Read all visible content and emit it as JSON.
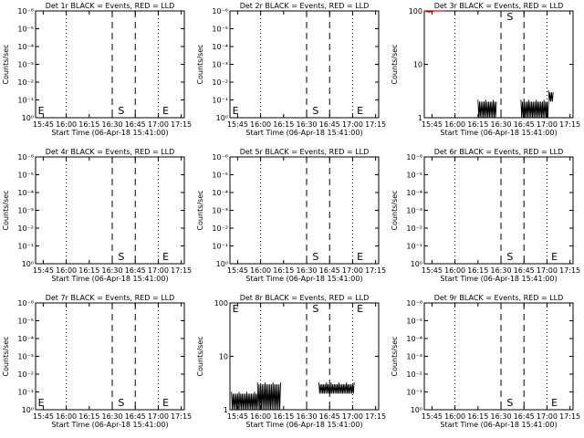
{
  "chart_data": [
    {
      "type": "line",
      "title": "Det 1r BLACK = Events, RED = LLD",
      "xlabel": "Start Time (06-Apr-18 15:41:00)",
      "ylabel": "Counts/sec",
      "yscale": "log",
      "ylim_exp": [
        0,
        -6
      ],
      "yticks": [
        "10⁰",
        "10⁻¹",
        "10⁻²",
        "10⁻³",
        "10⁻⁴",
        "10⁻⁵",
        "10⁻⁶"
      ],
      "xticks": [
        "15:45",
        "16:00",
        "16:15",
        "16:30",
        "16:45",
        "17:00",
        "17:15"
      ],
      "x_range_min": [
        -1,
        96
      ],
      "dotted_lines_min": [
        19,
        79
      ],
      "dashed_lines_min": [
        49,
        64
      ],
      "markers": [
        {
          "label": "E",
          "x_min": 0
        },
        {
          "label": "S",
          "x_min": 51
        },
        {
          "label": "E",
          "x_min": 80
        }
      ],
      "series": []
    },
    {
      "type": "line",
      "title": "Det 2r BLACK = Events, RED = LLD",
      "xlabel": "Start Time (06-Apr-18 15:41:00)",
      "ylabel": "Counts/sec",
      "yscale": "log",
      "ylim_exp": [
        0,
        -6
      ],
      "yticks": [
        "10⁰",
        "10⁻¹",
        "10⁻²",
        "10⁻³",
        "10⁻⁴",
        "10⁻⁵",
        "10⁻⁶"
      ],
      "xticks": [
        "15:45",
        "16:00",
        "16:15",
        "16:30",
        "16:45",
        "17:00",
        "17:15"
      ],
      "x_range_min": [
        -1,
        96
      ],
      "dotted_lines_min": [
        19,
        79
      ],
      "dashed_lines_min": [
        49,
        64
      ],
      "markers": [
        {
          "label": "E",
          "x_min": 0
        },
        {
          "label": "S",
          "x_min": 51
        },
        {
          "label": "E",
          "x_min": 80
        }
      ],
      "series": []
    },
    {
      "type": "line",
      "title": "Det 3r BLACK = Events, RED = LLD",
      "xlabel": "Start Time (06-Apr-18 15:41:00)",
      "ylabel": "Counts/sec",
      "yscale": "log",
      "ylim": [
        1,
        100
      ],
      "yticks": [
        "100",
        "10",
        "1"
      ],
      "xticks": [
        "15:45",
        "16:00",
        "16:15",
        "16:30",
        "16:45",
        "17:00",
        "17:15"
      ],
      "x_range_min": [
        -1,
        96
      ],
      "dotted_lines_min": [
        19,
        79
      ],
      "dashed_lines_min": [
        49,
        64
      ],
      "markers": [
        {
          "label": "S",
          "x_min": 51
        }
      ],
      "series": [
        {
          "color": "#000000",
          "kind": "spiky",
          "segments": [
            {
              "x_min": [
                34,
                46
              ],
              "low": 1,
              "high": 2
            },
            {
              "x_min": [
                62,
                80
              ],
              "low": 1,
              "high": 2
            },
            {
              "x_min": [
                80,
                83
              ],
              "low": 2,
              "high": 3
            }
          ]
        },
        {
          "color": "#ff0000",
          "kind": "line",
          "points": [
            [
              -1,
              100
            ],
            [
              2,
              95
            ],
            [
              6,
              100
            ],
            [
              12,
              100
            ]
          ]
        }
      ]
    },
    {
      "type": "line",
      "title": "Det 4r BLACK = Events, RED = LLD",
      "xlabel": "Start Time (06-Apr-18 15:41:00)",
      "ylabel": "Counts/sec",
      "yscale": "log",
      "ylim_exp": [
        0,
        -6
      ],
      "yticks": [
        "10⁰",
        "10⁻¹",
        "10⁻²",
        "10⁻³",
        "10⁻⁴",
        "10⁻⁵",
        "10⁻⁶"
      ],
      "xticks": [
        "15:45",
        "16:00",
        "16:15",
        "16:30",
        "16:45",
        "17:00",
        "17:15"
      ],
      "x_range_min": [
        -1,
        96
      ],
      "dotted_lines_min": [
        19,
        79
      ],
      "dashed_lines_min": [
        49,
        64
      ],
      "markers": [
        {
          "label": "S",
          "x_min": 51
        },
        {
          "label": "E",
          "x_min": 80
        }
      ],
      "series": []
    },
    {
      "type": "line",
      "title": "Det 5r BLACK = Events, RED = LLD",
      "xlabel": "Start Time (06-Apr-18 15:41:00)",
      "ylabel": "Counts/sec",
      "yscale": "log",
      "ylim_exp": [
        0,
        -6
      ],
      "yticks": [
        "10⁰",
        "10⁻¹",
        "10⁻²",
        "10⁻³",
        "10⁻⁴",
        "10⁻⁵",
        "10⁻⁶"
      ],
      "xticks": [
        "15:45",
        "16:00",
        "16:15",
        "16:30",
        "16:45",
        "17:00",
        "17:15"
      ],
      "x_range_min": [
        -1,
        96
      ],
      "dotted_lines_min": [
        19,
        79
      ],
      "dashed_lines_min": [
        49,
        64
      ],
      "markers": [
        {
          "label": "S",
          "x_min": 51
        },
        {
          "label": "E",
          "x_min": 80
        }
      ],
      "series": []
    },
    {
      "type": "line",
      "title": "Det 6r BLACK = Events, RED = LLD",
      "xlabel": "Start Time (06-Apr-18 15:41:00)",
      "ylabel": "Counts/sec",
      "yscale": "log",
      "ylim_exp": [
        0,
        -6
      ],
      "yticks": [
        "10⁰",
        "10⁻¹",
        "10⁻²",
        "10⁻³",
        "10⁻⁴",
        "10⁻⁵",
        "10⁻⁶"
      ],
      "xticks": [
        "15:45",
        "16:00",
        "16:15",
        "16:30",
        "16:45",
        "17:00",
        "17:15"
      ],
      "x_range_min": [
        -1,
        96
      ],
      "dotted_lines_min": [
        19,
        79
      ],
      "dashed_lines_min": [
        49,
        64
      ],
      "markers": [
        {
          "label": "S",
          "x_min": 51
        },
        {
          "label": "E",
          "x_min": 80
        }
      ],
      "series": []
    },
    {
      "type": "line",
      "title": "Det 7r BLACK = Events, RED = LLD",
      "xlabel": "Start Time (06-Apr-18 15:41:00)",
      "ylabel": "Counts/sec",
      "yscale": "log",
      "ylim_exp": [
        0,
        -6
      ],
      "yticks": [
        "10⁰",
        "10⁻¹",
        "10⁻²",
        "10⁻³",
        "10⁻⁴",
        "10⁻⁵",
        "10⁻⁶"
      ],
      "xticks": [
        "15:45",
        "16:00",
        "16:15",
        "16:30",
        "16:45",
        "17:00",
        "17:15"
      ],
      "x_range_min": [
        -1,
        96
      ],
      "dotted_lines_min": [
        19,
        79
      ],
      "dashed_lines_min": [
        49,
        64
      ],
      "markers": [
        {
          "label": "E",
          "x_min": 0
        },
        {
          "label": "S",
          "x_min": 51
        },
        {
          "label": "E",
          "x_min": 80
        }
      ],
      "series": []
    },
    {
      "type": "line",
      "title": "Det 8r BLACK = Events, RED = LLD",
      "xlabel": "Start Time (06-Apr-18 15:41:00)",
      "ylabel": "Counts/sec",
      "yscale": "log",
      "ylim": [
        1,
        100
      ],
      "yticks": [
        "100",
        "10",
        "1"
      ],
      "xticks": [
        "15:45",
        "16:00",
        "16:15",
        "16:30",
        "16:45",
        "17:00",
        "17:15"
      ],
      "x_range_min": [
        -1,
        96
      ],
      "dotted_lines_min": [
        19,
        79
      ],
      "dashed_lines_min": [
        49,
        64
      ],
      "markers": [
        {
          "label": "E",
          "x_min": 0
        },
        {
          "label": "S",
          "x_min": 51
        },
        {
          "label": "E",
          "x_min": 80
        }
      ],
      "series": [
        {
          "color": "#000000",
          "kind": "spiky",
          "segments": [
            {
              "x_min": [
                0,
                17
              ],
              "low": 1,
              "high": 2
            },
            {
              "x_min": [
                17,
                32
              ],
              "low": 1,
              "high": 3
            },
            {
              "x_min": [
                57,
                65
              ],
              "low": 2,
              "high": 3
            },
            {
              "x_min": [
                65,
                80
              ],
              "low": 2,
              "high": 3
            }
          ]
        }
      ]
    },
    {
      "type": "line",
      "title": "Det 9r BLACK = Events, RED = LLD",
      "xlabel": "Start Time (06-Apr-18 15:41:00)",
      "ylabel": "Counts/sec",
      "yscale": "log",
      "ylim_exp": [
        0,
        -6
      ],
      "yticks": [
        "10⁰",
        "10⁻¹",
        "10⁻²",
        "10⁻³",
        "10⁻⁴",
        "10⁻⁵",
        "10⁻⁶"
      ],
      "xticks": [
        "15:45",
        "16:00",
        "16:15",
        "16:30",
        "16:45",
        "17:00",
        "17:15"
      ],
      "x_range_min": [
        -1,
        96
      ],
      "dotted_lines_min": [
        19,
        79
      ],
      "dashed_lines_min": [
        49,
        64
      ],
      "markers": [
        {
          "label": "S",
          "x_min": 51
        },
        {
          "label": "E",
          "x_min": 80
        }
      ],
      "series": []
    }
  ]
}
